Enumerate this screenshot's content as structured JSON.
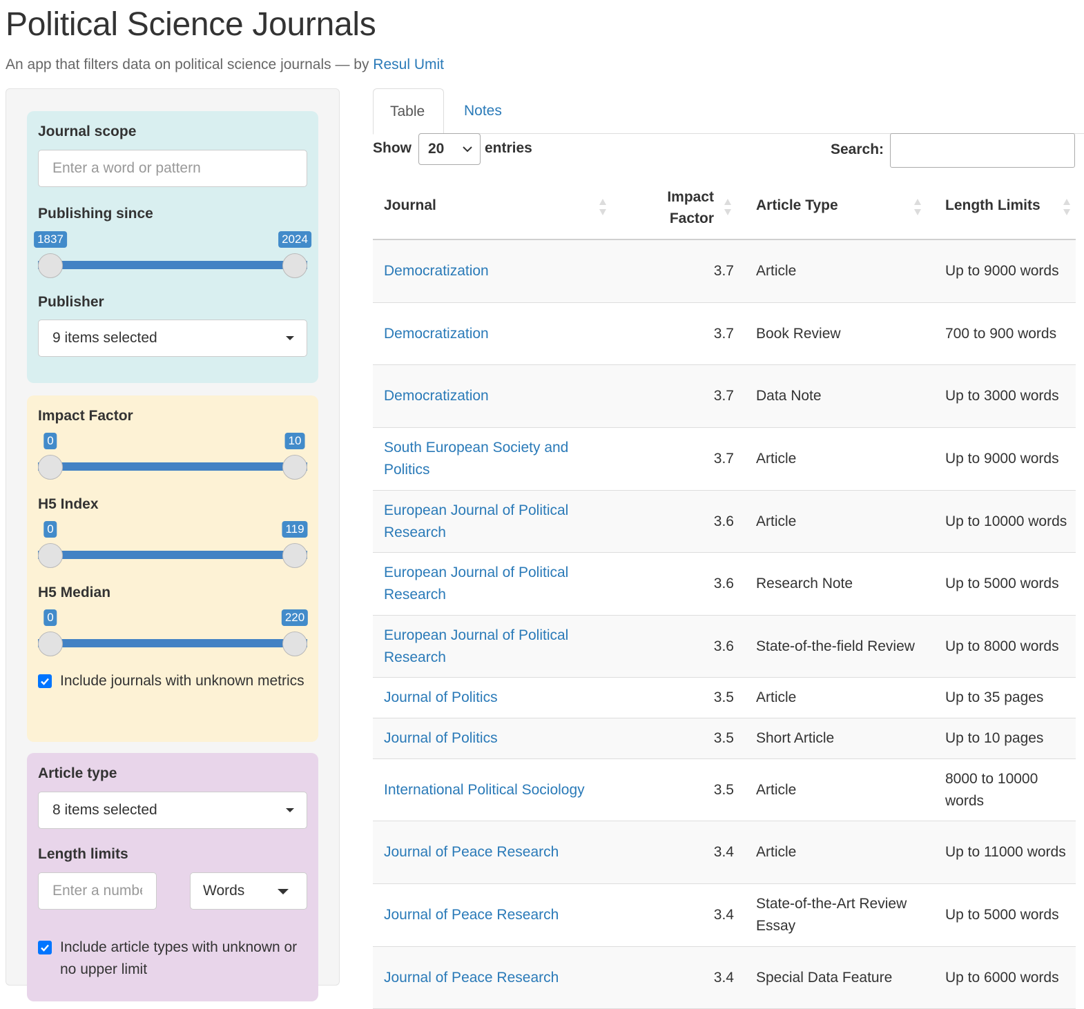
{
  "header": {
    "title": "Political Science Journals",
    "subtitle_prefix": "An app that filters data on political science journals — by ",
    "author_link": "Resul Umit"
  },
  "sidebar": {
    "journal_scope": {
      "label": "Journal scope",
      "placeholder": "Enter a word or pattern"
    },
    "publishing_since": {
      "label": "Publishing since",
      "min": "1837",
      "max": "2024"
    },
    "publisher": {
      "label": "Publisher",
      "value": "9 items selected"
    },
    "impact_factor": {
      "label": "Impact Factor",
      "min": "0",
      "max": "10"
    },
    "h5_index": {
      "label": "H5 Index",
      "min": "0",
      "max": "119"
    },
    "h5_median": {
      "label": "H5 Median",
      "min": "0",
      "max": "220"
    },
    "unknown_metrics": {
      "label": "Include journals with unknown metrics",
      "checked": true
    },
    "article_type": {
      "label": "Article type",
      "value": "8 items selected"
    },
    "length_limits": {
      "label": "Length limits",
      "placeholder": "Enter a number",
      "unit": "Words"
    },
    "unknown_limit": {
      "label": "Include article types with unknown or no upper limit",
      "checked": true
    }
  },
  "tabs": [
    {
      "label": "Table",
      "active": true
    },
    {
      "label": "Notes",
      "active": false
    }
  ],
  "table_controls": {
    "show_label": "Show",
    "entries_value": "20",
    "entries_label": "entries",
    "search_label": "Search:"
  },
  "table": {
    "columns": [
      "Journal",
      "Impact Factor",
      "Article Type",
      "Length Limits"
    ],
    "rows": [
      {
        "journal": "Democratization",
        "impact": "3.7",
        "type": "Article",
        "length": "Up to 9000 words"
      },
      {
        "journal": "Democratization",
        "impact": "3.7",
        "type": "Book Review",
        "length": "700 to 900 words"
      },
      {
        "journal": "Democratization",
        "impact": "3.7",
        "type": "Data Note",
        "length": "Up to 3000 words"
      },
      {
        "journal": "South European Society and Politics",
        "impact": "3.7",
        "type": "Article",
        "length": "Up to 9000 words"
      },
      {
        "journal": "European Journal of Political Research",
        "impact": "3.6",
        "type": "Article",
        "length": "Up to 10000 words"
      },
      {
        "journal": "European Journal of Political Research",
        "impact": "3.6",
        "type": "Research Note",
        "length": "Up to 5000 words"
      },
      {
        "journal": "European Journal of Political Research",
        "impact": "3.6",
        "type": "State-of-the-field Review",
        "length": "Up to 8000 words"
      },
      {
        "journal": "Journal of Politics",
        "impact": "3.5",
        "type": "Article",
        "length": "Up to 35 pages"
      },
      {
        "journal": "Journal of Politics",
        "impact": "3.5",
        "type": "Short Article",
        "length": "Up to 10 pages"
      },
      {
        "journal": "International Political Sociology",
        "impact": "3.5",
        "type": "Article",
        "length": "8000 to 10000 words"
      },
      {
        "journal": "Journal of Peace Research",
        "impact": "3.4",
        "type": "Article",
        "length": "Up to 11000 words"
      },
      {
        "journal": "Journal of Peace Research",
        "impact": "3.4",
        "type": "State-of-the-Art Review Essay",
        "length": "Up to 5000 words"
      },
      {
        "journal": "Journal of Peace Research",
        "impact": "3.4",
        "type": "Special Data Feature",
        "length": "Up to 6000 words"
      }
    ]
  },
  "colors": {
    "link": "#2a7ab8",
    "slider": "#4282c4",
    "checkbox": "#0075ff"
  }
}
